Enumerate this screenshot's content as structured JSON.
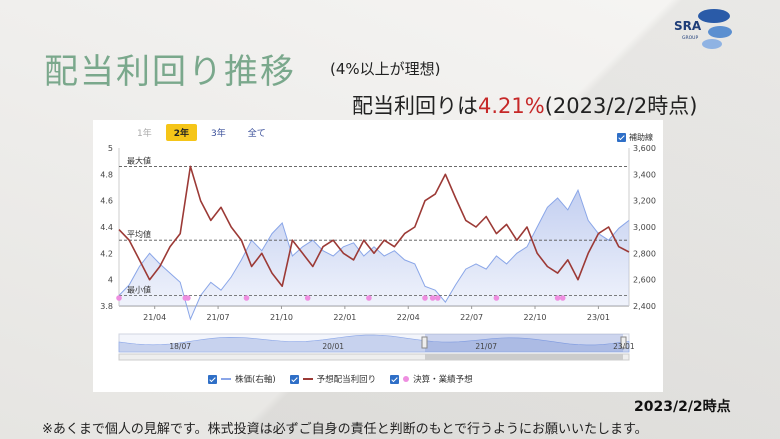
{
  "title": "配当利回り推移",
  "subtitle": "(4%以上が理想)",
  "headline": {
    "prefix": "配当利回りは",
    "value": "4.21%",
    "suffix": "(2023/2/2時点)",
    "highlight_color": "#c62828"
  },
  "logo": {
    "text": "SRA",
    "subtext": "GROUP"
  },
  "range_buttons": [
    {
      "label": "1年",
      "state": "disabled"
    },
    {
      "label": "2年",
      "state": "active"
    },
    {
      "label": "3年",
      "state": "normal"
    },
    {
      "label": "全て",
      "state": "normal"
    }
  ],
  "aux_line_label": "補助線",
  "ref_labels": {
    "max": "最大値",
    "avg": "平均値",
    "min": "最小値"
  },
  "legend": {
    "price": "株価(右軸)",
    "yield": "予想配当利回り",
    "events": "決算・業績予想"
  },
  "navigator_labels": [
    "18/07",
    "20/01",
    "21/07",
    "23/01"
  ],
  "asof": "2023/2/2時点",
  "disclaimer": "※あくまで個人の見解です。株式投資は必ずご自身の責任と判断のもとで行うようにお願いいたします。",
  "colors": {
    "yield_line": "#9c3a36",
    "price_area": "#b9c7ee",
    "price_line": "#8aa6e8",
    "event_dot": "#ee8ee0",
    "title": "#7aa88c"
  },
  "chart_data": {
    "type": "line",
    "x_ticks": [
      "21/04",
      "21/07",
      "21/10",
      "22/01",
      "22/04",
      "22/07",
      "22/10",
      "23/01"
    ],
    "y_left": {
      "ticks": [
        "3.8",
        "4",
        "4.2",
        "4.4",
        "4.6",
        "4.8",
        "5"
      ],
      "lim": [
        3.8,
        5.0
      ]
    },
    "y_right": {
      "ticks": [
        "2,400",
        "2,600",
        "2,800",
        "3,000",
        "3,200",
        "3,400",
        "3,600"
      ],
      "lim": [
        2400,
        3600
      ]
    },
    "reference_lines": {
      "max": 4.86,
      "avg": 4.3,
      "min": 3.88
    },
    "series": [
      {
        "name": "予想配当利回り",
        "axis": "left",
        "x": [
          0,
          0.02,
          0.04,
          0.06,
          0.08,
          0.1,
          0.12,
          0.14,
          0.16,
          0.18,
          0.2,
          0.22,
          0.24,
          0.26,
          0.28,
          0.3,
          0.32,
          0.34,
          0.36,
          0.38,
          0.4,
          0.42,
          0.44,
          0.46,
          0.48,
          0.5,
          0.52,
          0.54,
          0.56,
          0.58,
          0.6,
          0.62,
          0.64,
          0.66,
          0.68,
          0.7,
          0.72,
          0.74,
          0.76,
          0.78,
          0.8,
          0.82,
          0.84,
          0.86,
          0.88,
          0.9,
          0.92,
          0.94,
          0.96,
          0.98,
          1.0
        ],
        "values": [
          4.38,
          4.3,
          4.15,
          4.0,
          4.1,
          4.25,
          4.35,
          4.86,
          4.6,
          4.45,
          4.55,
          4.4,
          4.3,
          4.1,
          4.2,
          4.05,
          3.95,
          4.3,
          4.2,
          4.1,
          4.25,
          4.3,
          4.2,
          4.15,
          4.3,
          4.2,
          4.3,
          4.25,
          4.35,
          4.4,
          4.6,
          4.65,
          4.8,
          4.62,
          4.45,
          4.4,
          4.48,
          4.35,
          4.42,
          4.3,
          4.4,
          4.2,
          4.1,
          4.05,
          4.15,
          4.0,
          4.2,
          4.35,
          4.4,
          4.25,
          4.21
        ]
      },
      {
        "name": "株価(右軸)",
        "axis": "right",
        "x": [
          0,
          0.02,
          0.04,
          0.06,
          0.08,
          0.1,
          0.12,
          0.14,
          0.16,
          0.18,
          0.2,
          0.22,
          0.24,
          0.26,
          0.28,
          0.3,
          0.32,
          0.34,
          0.36,
          0.38,
          0.4,
          0.42,
          0.44,
          0.46,
          0.48,
          0.5,
          0.52,
          0.54,
          0.56,
          0.58,
          0.6,
          0.62,
          0.64,
          0.66,
          0.68,
          0.7,
          0.72,
          0.74,
          0.76,
          0.78,
          0.8,
          0.82,
          0.84,
          0.86,
          0.88,
          0.9,
          0.92,
          0.94,
          0.96,
          0.98,
          1.0
        ],
        "values": [
          2480,
          2560,
          2700,
          2800,
          2720,
          2650,
          2580,
          2300,
          2480,
          2580,
          2520,
          2620,
          2750,
          2900,
          2820,
          2950,
          3030,
          2780,
          2850,
          2900,
          2820,
          2780,
          2850,
          2880,
          2780,
          2850,
          2780,
          2820,
          2750,
          2720,
          2550,
          2520,
          2430,
          2560,
          2680,
          2720,
          2680,
          2780,
          2720,
          2800,
          2850,
          3000,
          3150,
          3220,
          3130,
          3280,
          3050,
          2950,
          2900,
          2990,
          3050
        ]
      }
    ],
    "events_x": [
      0.0,
      0.13,
      0.135,
      0.25,
      0.37,
      0.49,
      0.6,
      0.615,
      0.625,
      0.74,
      0.86,
      0.87
    ]
  }
}
